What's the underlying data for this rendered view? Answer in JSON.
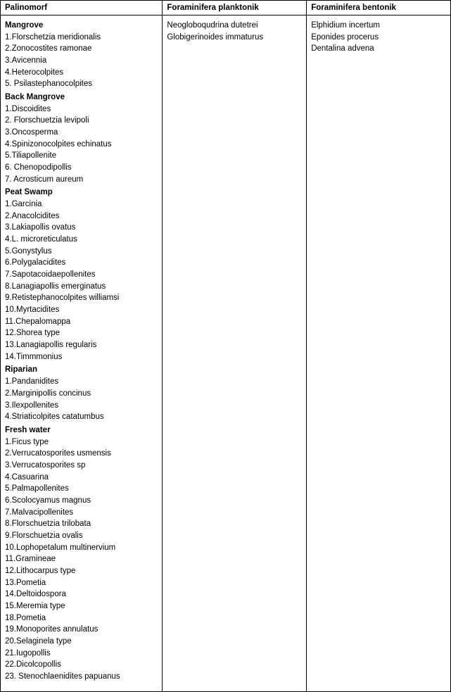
{
  "columns": {
    "palinomorf": "Palinomorf",
    "planktonik": "Foraminifera planktonik",
    "bentonik": "Foraminifera bentonik"
  },
  "palinomorf_groups": [
    {
      "title": "Mangrove",
      "items": [
        "1.Florschetzia meridionalis",
        "2.Zonocostites ramonae",
        "3.Avicennia",
        "4.Heterocolpites",
        "5. Psilastephanocolpites"
      ]
    },
    {
      "title": "Back Mangrove",
      "items": [
        "1.Discoidites",
        "2. Florschuetzia levipoli",
        "3.Oncosperma",
        "4.Spinizonocolpites echinatus",
        "5.Tiliapollenite",
        "6. Chenopodipollis",
        "7. Acrosticum aureum"
      ]
    },
    {
      "title": "Peat Swamp",
      "items": [
        "1.Garcinia",
        "2.Anacolcidites",
        "3.Lakiapollis ovatus",
        "4.L. microreticulatus",
        "5.Gonystylus",
        "6.Polygalacidites",
        "7.Sapotacoidaepollenites",
        "8.Lanagiapollis emerginatus",
        "9.Retistephanocolpites williamsi",
        "10.Myrtacidites",
        "11.Chepalomappa",
        "12.Shorea  type",
        "13.Lanagiapollis regularis",
        "14.Timmmonius"
      ]
    },
    {
      "title": "Riparian",
      "items": [
        "1.Pandanidites",
        "2.Marginipollis concinus",
        "3.Ilexpollenites",
        "4.Striaticolpites catatumbus"
      ]
    },
    {
      "title": "Fresh water",
      "items": [
        "1.Ficus type",
        "2.Verrucatosporites usmensis",
        "3.Verrucatosporites sp",
        "4.Casuarina",
        "5.Palmapollenites",
        "6.Scolocyamus magnus",
        "7.Malvacipollenites",
        "8.Florschuetzia trilobata",
        "9.Florschuetzia ovalis",
        "10.Lophopetalum multinervium",
        "11.Gramineae",
        "12.Lithocarpus type",
        "13.Pometia",
        "14.Deltoidospora",
        "15.Meremia type",
        "18.Pometia",
        "19.Monoporites annulatus",
        "20.Selaginela type",
        "21.Iugopollis",
        "22.Dicolcopollis",
        "23. Stenochlaenidites papuanus"
      ]
    }
  ],
  "planktonik_items": [
    "Neogloboqudrina dutetrei",
    "Globigerinoides immaturus"
  ],
  "bentonik_items": [
    "Elphidium incertum",
    "Eponides procerus",
    "Dentalina advena"
  ]
}
